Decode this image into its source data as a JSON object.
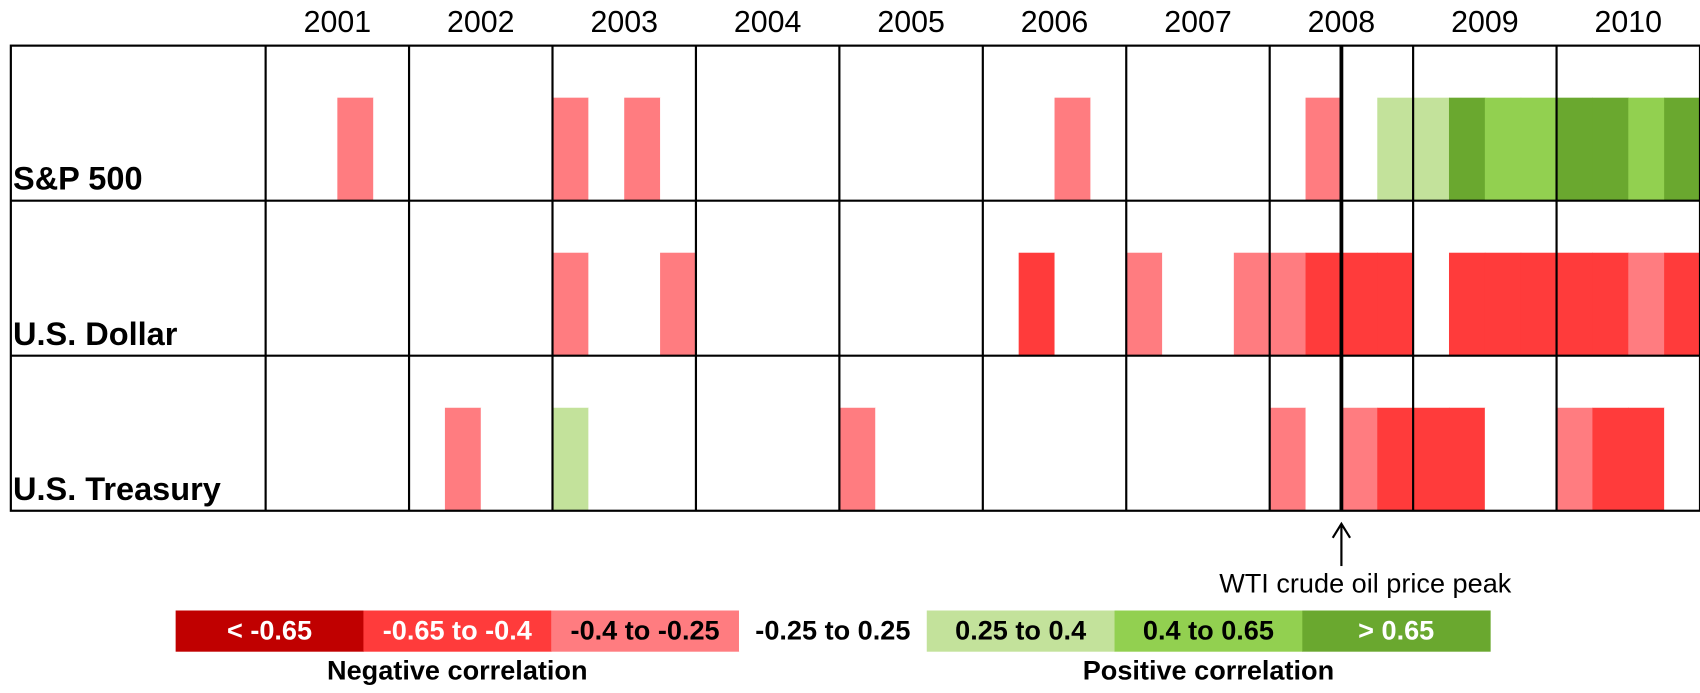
{
  "chart_data": {
    "type": "heatmap",
    "years": [
      2001,
      2002,
      2003,
      2004,
      2005,
      2006,
      2007,
      2008,
      2009,
      2010
    ],
    "series": [
      {
        "name": "S&P 500",
        "values": [
          "-0.25 to 0.25",
          "-0.25 to 0.25",
          "-0.4 to -0.25",
          "-0.25 to 0.25",
          "-0.25 to 0.25",
          "-0.25 to 0.25",
          "-0.25 to 0.25",
          "-0.25 to 0.25",
          "-0.4 to -0.25",
          "-0.25 to 0.25",
          "-0.4 to -0.25",
          "-0.25 to 0.25",
          "-0.25 to 0.25",
          "-0.25 to 0.25",
          "-0.25 to 0.25",
          "-0.25 to 0.25",
          "-0.25 to 0.25",
          "-0.25 to 0.25",
          "-0.25 to 0.25",
          "-0.25 to 0.25",
          "-0.25 to 0.25",
          "-0.25 to 0.25",
          "-0.4 to -0.25",
          "-0.25 to 0.25",
          "-0.25 to 0.25",
          "-0.25 to 0.25",
          "-0.25 to 0.25",
          "-0.25 to 0.25",
          "-0.25 to 0.25",
          "-0.4 to -0.25",
          "-0.25 to 0.25",
          "0.25 to 0.4",
          "0.25 to 0.4",
          "> 0.65",
          "0.4 to 0.65",
          "0.4 to 0.65",
          "> 0.65",
          "> 0.65",
          "0.4 to 0.65",
          "> 0.65"
        ]
      },
      {
        "name": "U.S. Dollar",
        "values": [
          "-0.25 to 0.25",
          "-0.25 to 0.25",
          "-0.25 to 0.25",
          "-0.25 to 0.25",
          "-0.25 to 0.25",
          "-0.25 to 0.25",
          "-0.25 to 0.25",
          "-0.25 to 0.25",
          "-0.4 to -0.25",
          "-0.25 to 0.25",
          "-0.25 to 0.25",
          "-0.4 to -0.25",
          "-0.25 to 0.25",
          "-0.25 to 0.25",
          "-0.25 to 0.25",
          "-0.25 to 0.25",
          "-0.25 to 0.25",
          "-0.25 to 0.25",
          "-0.25 to 0.25",
          "-0.25 to 0.25",
          "-0.25 to 0.25",
          "-0.65 to -0.4",
          "-0.25 to 0.25",
          "-0.25 to 0.25",
          "-0.4 to -0.25",
          "-0.25 to 0.25",
          "-0.25 to 0.25",
          "-0.4 to -0.25",
          "-0.4 to -0.25",
          "-0.65 to -0.4",
          "-0.65 to -0.4",
          "-0.65 to -0.4",
          "-0.25 to 0.25",
          "-0.65 to -0.4",
          "-0.65 to -0.4",
          "-0.65 to -0.4",
          "-0.65 to -0.4",
          "-0.65 to -0.4",
          "-0.4 to -0.25",
          "-0.65 to -0.4"
        ]
      },
      {
        "name": "U.S. Treasury",
        "values": [
          "-0.25 to 0.25",
          "-0.25 to 0.25",
          "-0.25 to 0.25",
          "-0.25 to 0.25",
          "-0.25 to 0.25",
          "-0.4 to -0.25",
          "-0.25 to 0.25",
          "-0.25 to 0.25",
          "0.25 to 0.4",
          "-0.25 to 0.25",
          "-0.25 to 0.25",
          "-0.25 to 0.25",
          "-0.25 to 0.25",
          "-0.25 to 0.25",
          "-0.25 to 0.25",
          "-0.25 to 0.25",
          "-0.4 to -0.25",
          "-0.25 to 0.25",
          "-0.25 to 0.25",
          "-0.25 to 0.25",
          "-0.25 to 0.25",
          "-0.25 to 0.25",
          "-0.25 to 0.25",
          "-0.25 to 0.25",
          "-0.25 to 0.25",
          "-0.25 to 0.25",
          "-0.25 to 0.25",
          "-0.25 to 0.25",
          "-0.4 to -0.25",
          "-0.25 to 0.25",
          "-0.4 to -0.25",
          "-0.65 to -0.4",
          "-0.65 to -0.4",
          "-0.65 to -0.4",
          "-0.25 to 0.25",
          "-0.25 to 0.25",
          "-0.4 to -0.25",
          "-0.65 to -0.4",
          "-0.65 to -0.4",
          "-0.25 to 0.25"
        ]
      }
    ],
    "legend": [
      {
        "label": "< -0.65",
        "color": "#c00000",
        "text_color": "#ffffff"
      },
      {
        "label": "-0.65 to -0.4",
        "color": "#ff3b3b",
        "text_color": "#ffffff"
      },
      {
        "label": "-0.4 to -0.25",
        "color": "#ff7c80",
        "text_color": "#000000"
      },
      {
        "label": "-0.25 to 0.25",
        "color": "#ffffff",
        "text_color": "#000000"
      },
      {
        "label": "0.25 to 0.4",
        "color": "#c3e29b",
        "text_color": "#000000"
      },
      {
        "label": "0.4 to 0.65",
        "color": "#92d050",
        "text_color": "#000000"
      },
      {
        "label": "> 0.65",
        "color": "#6aa82f",
        "text_color": "#ffffff"
      }
    ],
    "legend_groups": [
      "Negative correlation",
      "Positive correlation"
    ],
    "annotation": {
      "text": "WTI crude oil price peak",
      "x": 2008.5
    }
  }
}
